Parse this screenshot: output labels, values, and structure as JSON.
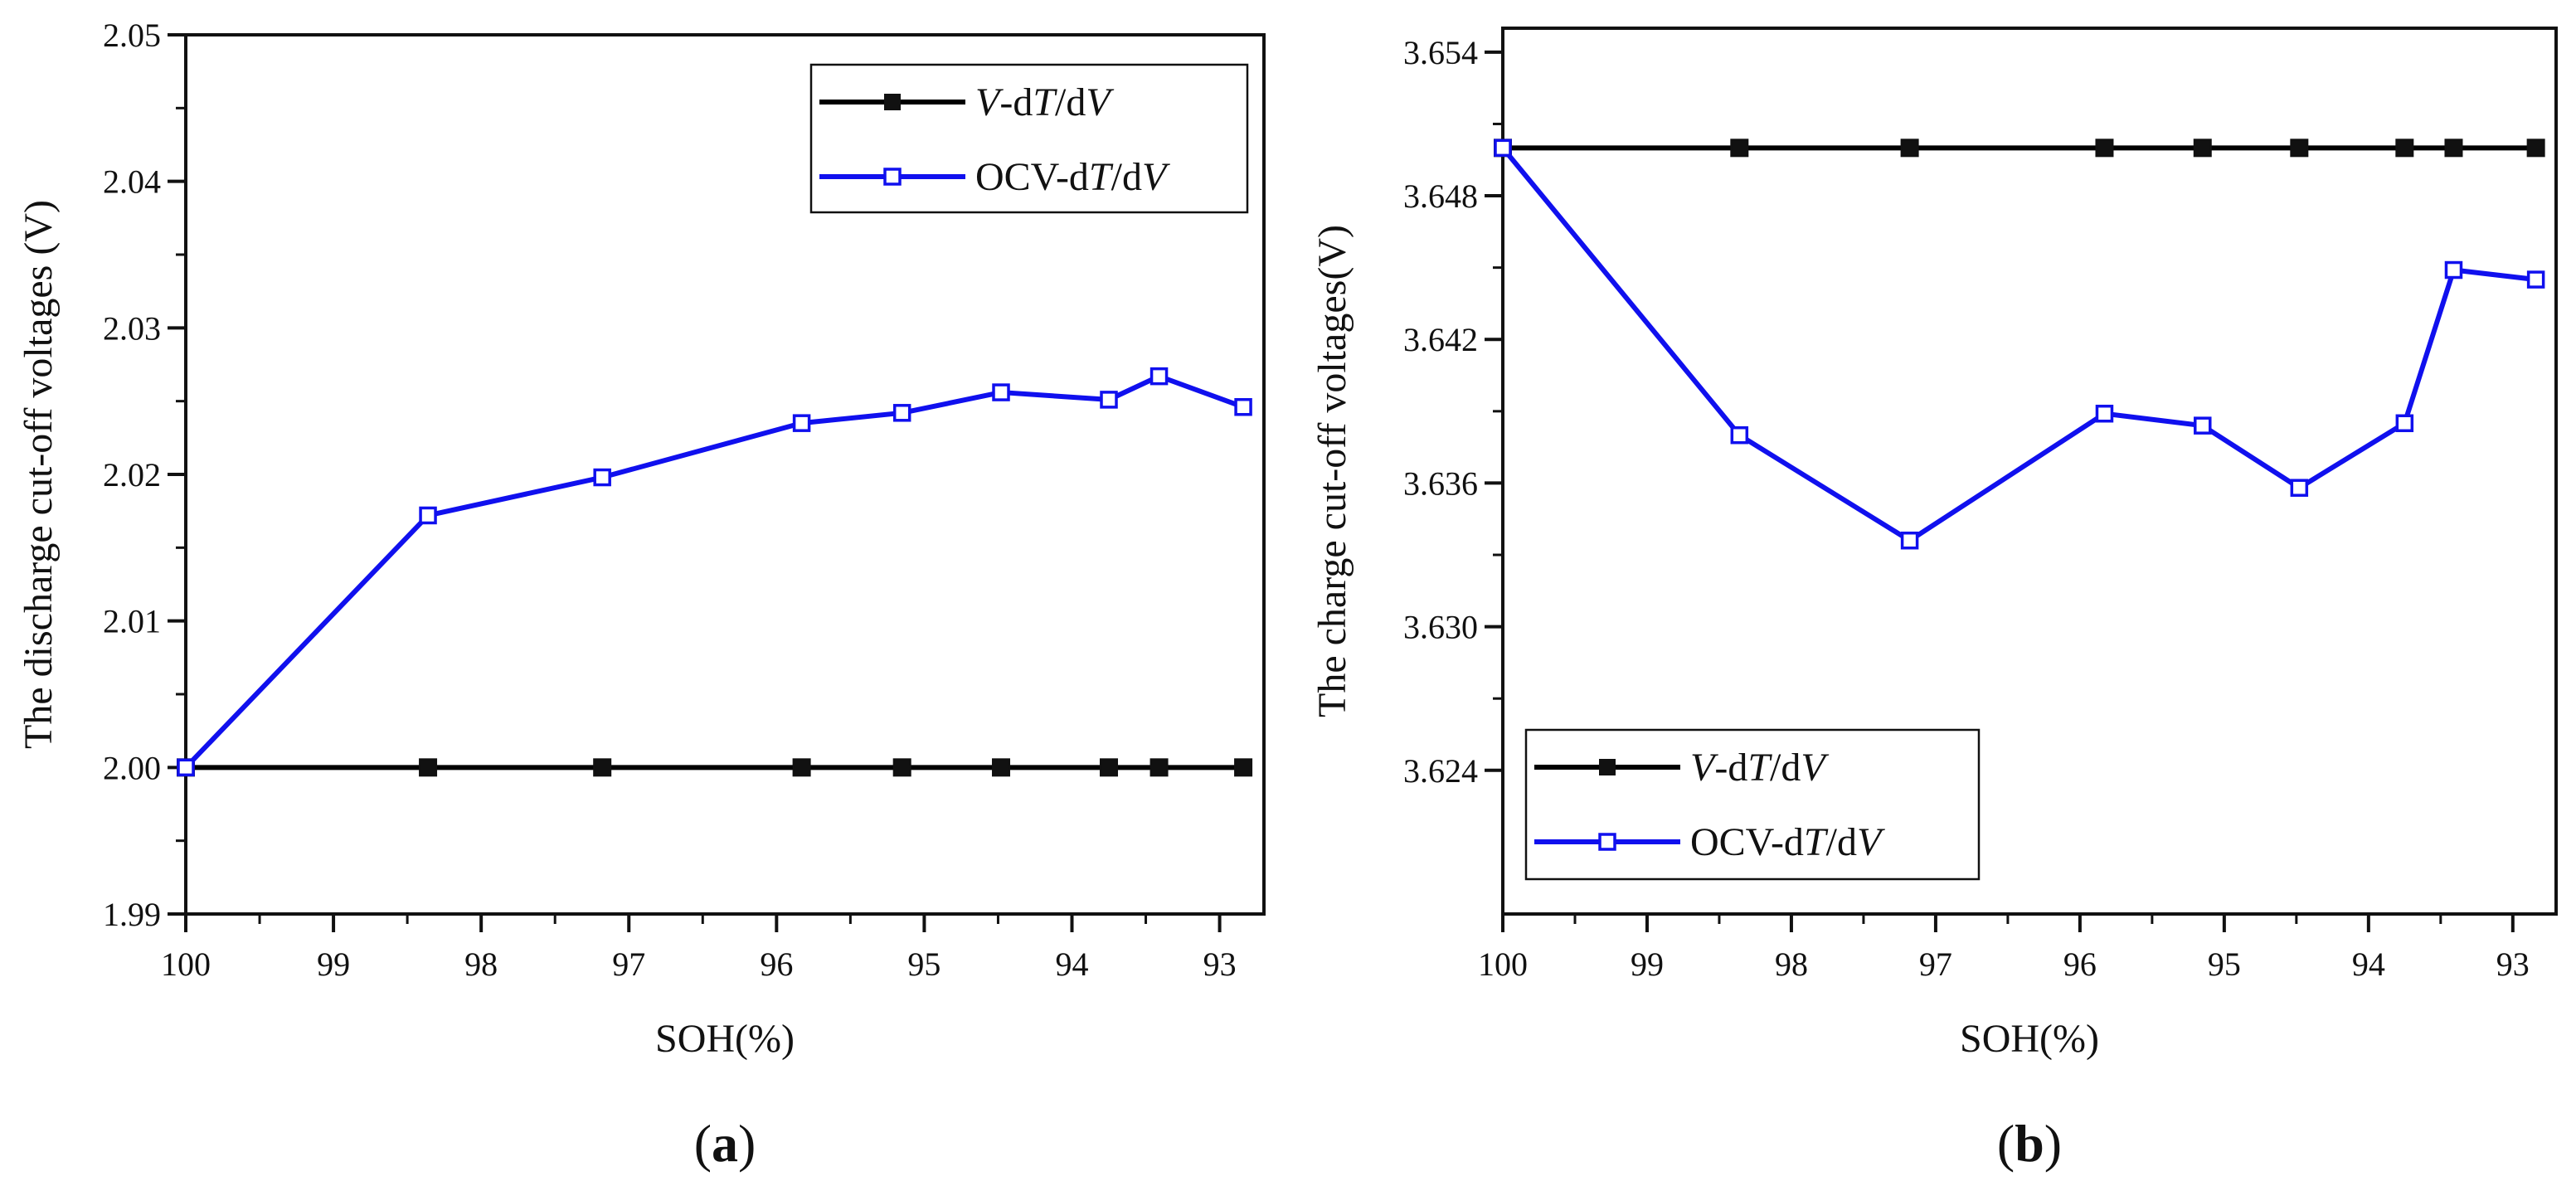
{
  "chart_data": [
    {
      "type": "line",
      "panel_label": {
        "open": "(",
        "letter": "a",
        "close": ")"
      },
      "xlabel": "SOH(%)",
      "ylabel": "The discharge cut-off voltages (V)",
      "xlim": [
        100,
        92.7
      ],
      "ylim": [
        1.99,
        2.05
      ],
      "x_ticks": [
        100,
        99,
        98,
        97,
        96,
        95,
        94,
        93
      ],
      "x_tick_labels": [
        "100",
        "99",
        "98",
        "97",
        "96",
        "95",
        "94",
        "93"
      ],
      "y_ticks": [
        1.99,
        2.0,
        2.01,
        2.02,
        2.03,
        2.04,
        2.05
      ],
      "y_tick_labels": [
        "1.99",
        "2.00",
        "2.01",
        "2.02",
        "2.03",
        "2.04",
        "2.05"
      ],
      "legend": {
        "placement": "top-right"
      },
      "series": [
        {
          "name": "V-dT/dV",
          "legend_parts": [
            {
              "text": "V",
              "italic": true
            },
            {
              "text": "-d",
              "italic": false
            },
            {
              "text": "T",
              "italic": true
            },
            {
              "text": "/d",
              "italic": false
            },
            {
              "text": "V",
              "italic": true
            }
          ],
          "color": "#000000",
          "marker": "filled-square",
          "x": [
            100,
            98.36,
            97.18,
            95.83,
            95.15,
            94.48,
            93.75,
            93.41,
            92.84
          ],
          "y": [
            2.0,
            2.0,
            2.0,
            2.0,
            2.0,
            2.0,
            2.0,
            2.0,
            2.0
          ]
        },
        {
          "name": "OCV-dT/dV",
          "legend_parts": [
            {
              "text": "OCV-d",
              "italic": false
            },
            {
              "text": "T",
              "italic": true
            },
            {
              "text": "/d",
              "italic": false
            },
            {
              "text": "V",
              "italic": true
            }
          ],
          "color": "#1010ee",
          "marker": "open-square",
          "x": [
            100,
            98.36,
            97.18,
            95.83,
            95.15,
            94.48,
            93.75,
            93.41,
            92.84
          ],
          "y": [
            2.0,
            2.0172,
            2.0198,
            2.0235,
            2.0242,
            2.0256,
            2.0251,
            2.0267,
            2.0246
          ]
        }
      ]
    },
    {
      "type": "line",
      "panel_label": {
        "open": "(",
        "letter": "b",
        "close": ")"
      },
      "xlabel": "SOH(%)",
      "ylabel": "The charge cut-off voltages(V)",
      "xlim": [
        100,
        92.7
      ],
      "ylim": [
        3.618,
        3.655
      ],
      "x_ticks": [
        100,
        99,
        98,
        97,
        96,
        95,
        94,
        93
      ],
      "x_tick_labels": [
        "100",
        "99",
        "98",
        "97",
        "96",
        "95",
        "94",
        "93"
      ],
      "y_ticks": [
        3.624,
        3.63,
        3.636,
        3.642,
        3.648,
        3.654
      ],
      "y_tick_labels": [
        "3.624",
        "3.630",
        "3.636",
        "3.642",
        "3.648",
        "3.654"
      ],
      "legend": {
        "placement": "bottom-left"
      },
      "series": [
        {
          "name": "V-dT/dV",
          "legend_parts": [
            {
              "text": "V",
              "italic": true
            },
            {
              "text": "-d",
              "italic": false
            },
            {
              "text": "T",
              "italic": true
            },
            {
              "text": "/d",
              "italic": false
            },
            {
              "text": "V",
              "italic": true
            }
          ],
          "color": "#000000",
          "marker": "filled-square",
          "x": [
            100,
            98.36,
            97.18,
            95.83,
            95.15,
            94.48,
            93.75,
            93.41,
            92.84
          ],
          "y": [
            3.65,
            3.65,
            3.65,
            3.65,
            3.65,
            3.65,
            3.65,
            3.65,
            3.65
          ]
        },
        {
          "name": "OCV-dT/dV",
          "legend_parts": [
            {
              "text": "OCV-d",
              "italic": false
            },
            {
              "text": "T",
              "italic": true
            },
            {
              "text": "/d",
              "italic": false
            },
            {
              "text": "V",
              "italic": true
            }
          ],
          "color": "#1010ee",
          "marker": "open-square",
          "x": [
            100,
            98.36,
            97.18,
            95.83,
            95.15,
            94.48,
            93.75,
            93.41,
            92.84
          ],
          "y": [
            3.65,
            3.638,
            3.6336,
            3.6389,
            3.6384,
            3.6358,
            3.6385,
            3.6449,
            3.6445
          ]
        }
      ]
    }
  ]
}
